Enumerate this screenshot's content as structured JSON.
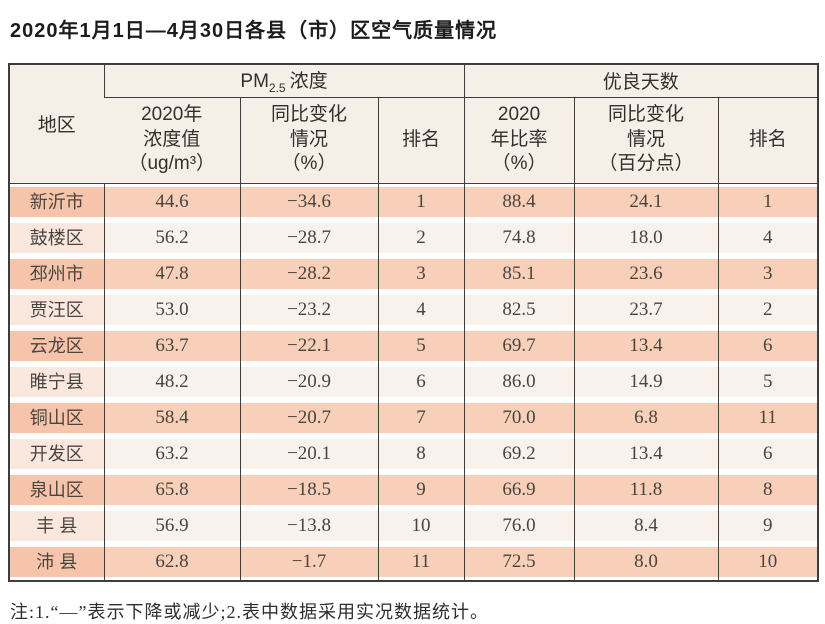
{
  "title": "2020年1月1日—4月30日各县（市）区空气质量情况",
  "note": "注:1.“—”表示下降或减少;2.表中数据采用实况数据统计。",
  "colors": {
    "border_dark": "#3d3d3d",
    "header_bg": "#f6efe8",
    "row_salmon_region": "#f6c4aa",
    "row_salmon_data": "#f8cfb9",
    "row_cream_region": "#fae8de",
    "row_cream_data": "#f8f1ec"
  },
  "table": {
    "header": {
      "region": "地区",
      "pm_prefix": "PM",
      "pm_sub": "2.5",
      "pm_suffix": "浓度",
      "good_days": "优良天数",
      "pm_value": "2020年\n浓度值\n（ug/m³）",
      "pm_change": "同比变化\n情况\n（%）",
      "pm_rank": "排名",
      "gd_ratio": "2020\n年比率\n（%）",
      "gd_change": "同比变化\n情况\n（百分点）",
      "gd_rank": "排名"
    },
    "rows": [
      {
        "region": "新沂市",
        "pm_value": "44.6",
        "pm_change": "−34.6",
        "pm_rank": "1",
        "gd_ratio": "88.4",
        "gd_change": "24.1",
        "gd_rank": "1"
      },
      {
        "region": "鼓楼区",
        "pm_value": "56.2",
        "pm_change": "−28.7",
        "pm_rank": "2",
        "gd_ratio": "74.8",
        "gd_change": "18.0",
        "gd_rank": "4"
      },
      {
        "region": "邳州市",
        "pm_value": "47.8",
        "pm_change": "−28.2",
        "pm_rank": "3",
        "gd_ratio": "85.1",
        "gd_change": "23.6",
        "gd_rank": "3"
      },
      {
        "region": "贾汪区",
        "pm_value": "53.0",
        "pm_change": "−23.2",
        "pm_rank": "4",
        "gd_ratio": "82.5",
        "gd_change": "23.7",
        "gd_rank": "2"
      },
      {
        "region": "云龙区",
        "pm_value": "63.7",
        "pm_change": "−22.1",
        "pm_rank": "5",
        "gd_ratio": "69.7",
        "gd_change": "13.4",
        "gd_rank": "6"
      },
      {
        "region": "睢宁县",
        "pm_value": "48.2",
        "pm_change": "−20.9",
        "pm_rank": "6",
        "gd_ratio": "86.0",
        "gd_change": "14.9",
        "gd_rank": "5"
      },
      {
        "region": "铜山区",
        "pm_value": "58.4",
        "pm_change": "−20.7",
        "pm_rank": "7",
        "gd_ratio": "70.0",
        "gd_change": "6.8",
        "gd_rank": "11"
      },
      {
        "region": "开发区",
        "pm_value": "63.2",
        "pm_change": "−20.1",
        "pm_rank": "8",
        "gd_ratio": "69.2",
        "gd_change": "13.4",
        "gd_rank": "6"
      },
      {
        "region": "泉山区",
        "pm_value": "65.8",
        "pm_change": "−18.5",
        "pm_rank": "9",
        "gd_ratio": "66.9",
        "gd_change": "11.8",
        "gd_rank": "8"
      },
      {
        "region": "丰 县",
        "pm_value": "56.9",
        "pm_change": "−13.8",
        "pm_rank": "10",
        "gd_ratio": "76.0",
        "gd_change": "8.4",
        "gd_rank": "9"
      },
      {
        "region": "沛 县",
        "pm_value": "62.8",
        "pm_change": "−1.7",
        "pm_rank": "11",
        "gd_ratio": "72.5",
        "gd_change": "8.0",
        "gd_rank": "10"
      }
    ]
  }
}
